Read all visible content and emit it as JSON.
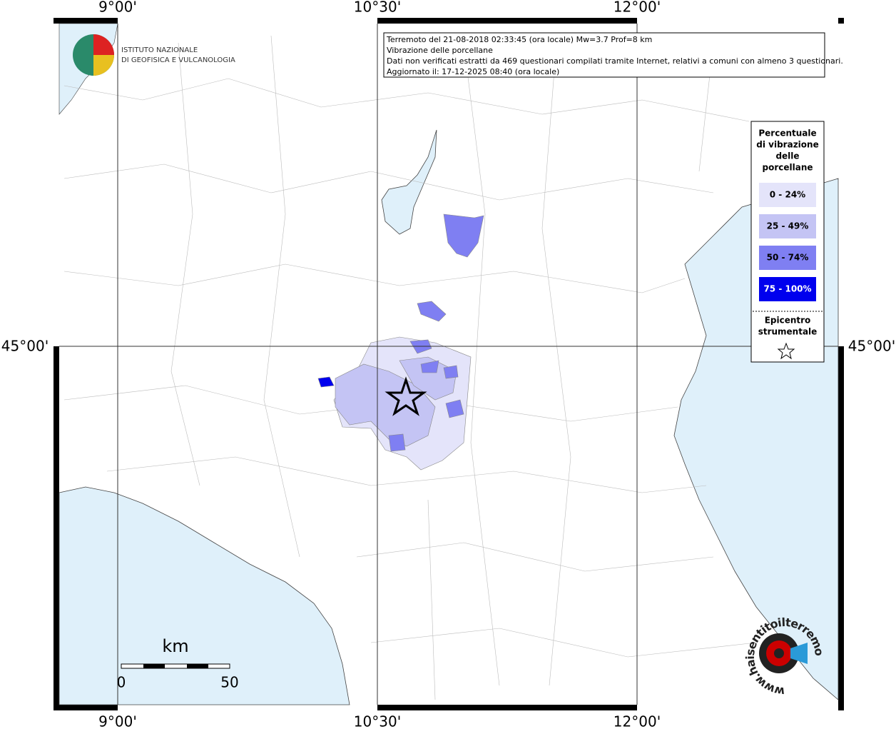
{
  "header": {
    "lines": [
      "Terremoto del 21-08-2018 02:33:45 (ora locale) Mw=3.7 Prof=8 km",
      "Vibrazione delle porcellane",
      "Dati non verificati estratti da 469 questionari compilati tramite Internet, relativi a comuni con almeno 3 questionari.",
      "Aggiornato il: 17-12-2025 08:40 (ora locale)"
    ]
  },
  "lon_labels": [
    "9°00'",
    "10°30'",
    "12°00'"
  ],
  "lat_labels": [
    "45°00'"
  ],
  "logo": {
    "lines": [
      "ISTITUTO NAZIONALE",
      "DI GEOFISICA E VULCANOLOGIA"
    ]
  },
  "legend": {
    "title": [
      "Percentuale",
      "di vibrazione",
      "delle",
      "porcellane"
    ],
    "classes": [
      {
        "label": "0 - 24%",
        "color": "#e4e4fa"
      },
      {
        "label": "25 - 49%",
        "color": "#c4c4f4"
      },
      {
        "label": "50 - 74%",
        "color": "#7f7ff2"
      },
      {
        "label": "75 - 100%",
        "color": "#0000ee"
      }
    ],
    "epicenter": [
      "Epicentro",
      "strumentale"
    ]
  },
  "scale": {
    "unit": "km",
    "labels": [
      "0",
      "50"
    ]
  },
  "watermark": "www.haisentitoilterremoto.it"
}
